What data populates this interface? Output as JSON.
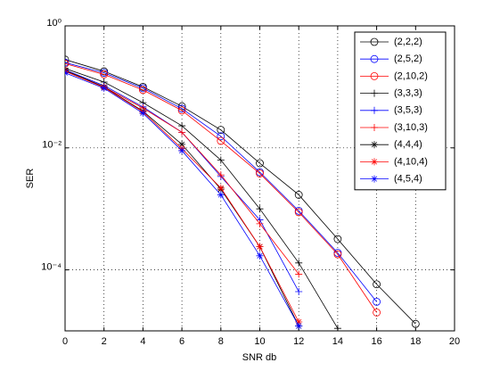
{
  "chart_data": {
    "type": "line",
    "xlabel": "SNR db",
    "ylabel": "SER",
    "log_y": true,
    "grid": true,
    "legend": "upper right",
    "xlim": [
      0,
      20
    ],
    "xticks": [
      0,
      2,
      4,
      6,
      8,
      10,
      12,
      14,
      16,
      18,
      20
    ],
    "ylim": [
      1e-05,
      1
    ],
    "yticks": [
      {
        "value": 1,
        "label": "10⁰"
      },
      {
        "value": 0.01,
        "label": "10⁻²"
      },
      {
        "value": 0.0001,
        "label": "10⁻⁴"
      }
    ],
    "series": [
      {
        "name": "(2,2,2)",
        "color": "#000000",
        "marker": "circle",
        "x": [
          0,
          2,
          4,
          6,
          8,
          10,
          12,
          14,
          16,
          18
        ],
        "values": [
          0.28,
          0.18,
          0.1,
          0.048,
          0.0197,
          0.0056,
          0.0017,
          0.00032,
          5.8e-05,
          1.3e-05
        ]
      },
      {
        "name": "(2,5,2)",
        "color": "#0000ff",
        "marker": "circle",
        "x": [
          0,
          2,
          4,
          6,
          8,
          10,
          12,
          14,
          16
        ],
        "values": [
          0.25,
          0.17,
          0.095,
          0.044,
          0.0155,
          0.004,
          0.00093,
          0.00019,
          3e-05
        ]
      },
      {
        "name": "(2,10,2)",
        "color": "#ff0000",
        "marker": "circle",
        "x": [
          0,
          2,
          4,
          6,
          8,
          10,
          12,
          14,
          16
        ],
        "values": [
          0.24,
          0.16,
          0.089,
          0.041,
          0.013,
          0.0038,
          0.00088,
          0.00018,
          2e-05
        ]
      },
      {
        "name": "(3,3,3)",
        "color": "#000000",
        "marker": "plus",
        "x": [
          0,
          2,
          4,
          6,
          8,
          10,
          12,
          14
        ],
        "values": [
          0.2,
          0.12,
          0.055,
          0.023,
          0.0063,
          0.001,
          0.00013,
          1.1e-05
        ]
      },
      {
        "name": "(3,5,3)",
        "color": "#0000ff",
        "marker": "plus",
        "x": [
          0,
          2,
          4,
          6,
          8,
          10,
          12
        ],
        "values": [
          0.19,
          0.105,
          0.047,
          0.018,
          0.0034,
          0.00066,
          4.4e-05
        ]
      },
      {
        "name": "(3,10,3)",
        "color": "#ff0000",
        "marker": "plus",
        "x": [
          0,
          2,
          4,
          6,
          8,
          10,
          12
        ],
        "values": [
          0.186,
          0.1,
          0.045,
          0.018,
          0.0036,
          0.00057,
          8.5e-05
        ]
      },
      {
        "name": "(4,4,4)",
        "color": "#000000",
        "marker": "star",
        "x": [
          0,
          2,
          4,
          6,
          8,
          10,
          12
        ],
        "values": [
          0.186,
          0.1,
          0.04,
          0.0114,
          0.0021,
          0.00024,
          1.2e-05
        ]
      },
      {
        "name": "(4,10,4)",
        "color": "#ff0000",
        "marker": "star",
        "x": [
          0,
          2,
          4,
          6,
          8,
          10,
          12
        ],
        "values": [
          0.18,
          0.098,
          0.039,
          0.0097,
          0.0022,
          0.00024,
          1.4e-05
        ]
      },
      {
        "name": "(4,5,4)",
        "color": "#0000ff",
        "marker": "star",
        "x": [
          0,
          2,
          4,
          6,
          8,
          10,
          12
        ],
        "values": [
          0.17,
          0.095,
          0.037,
          0.009,
          0.0017,
          0.00017,
          1.2e-05
        ]
      }
    ]
  }
}
